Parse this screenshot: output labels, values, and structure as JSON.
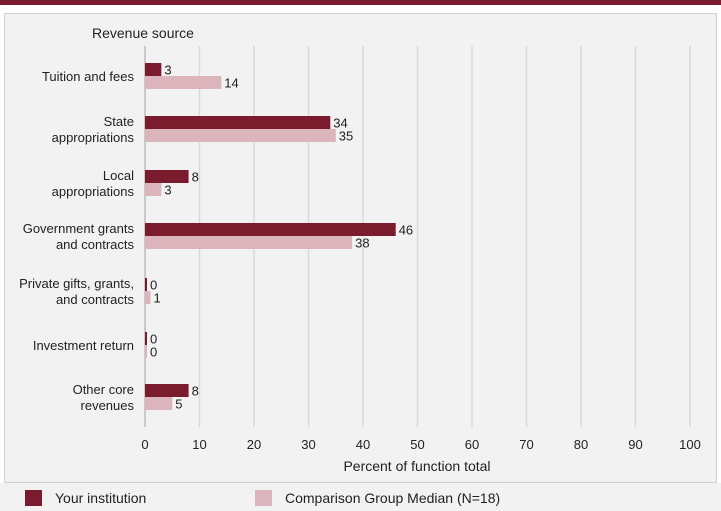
{
  "chart_data": {
    "type": "bar",
    "orientation": "horizontal",
    "title": "Revenue source",
    "xlabel": "Percent of function total",
    "xlim": [
      0,
      100
    ],
    "x_ticks": [
      0,
      10,
      20,
      30,
      40,
      50,
      60,
      70,
      80,
      90,
      100
    ],
    "grid": true,
    "categories": [
      [
        "Tuition and fees"
      ],
      [
        "State",
        "appropriations"
      ],
      [
        "Local",
        "appropriations"
      ],
      [
        "Government grants",
        "and contracts"
      ],
      [
        "Private gifts, grants,",
        "and contracts"
      ],
      [
        "Investment return"
      ],
      [
        "Other core",
        "revenues"
      ]
    ],
    "series": [
      {
        "name": "Your institution",
        "color": "#7b1c2e",
        "values": [
          3,
          34,
          8,
          46,
          0,
          0,
          8
        ]
      },
      {
        "name": "Comparison Group Median (N=18)",
        "color": "#dcb4bc",
        "values": [
          14,
          35,
          3,
          38,
          1,
          0,
          5
        ]
      }
    ],
    "legend_position": "bottom"
  }
}
